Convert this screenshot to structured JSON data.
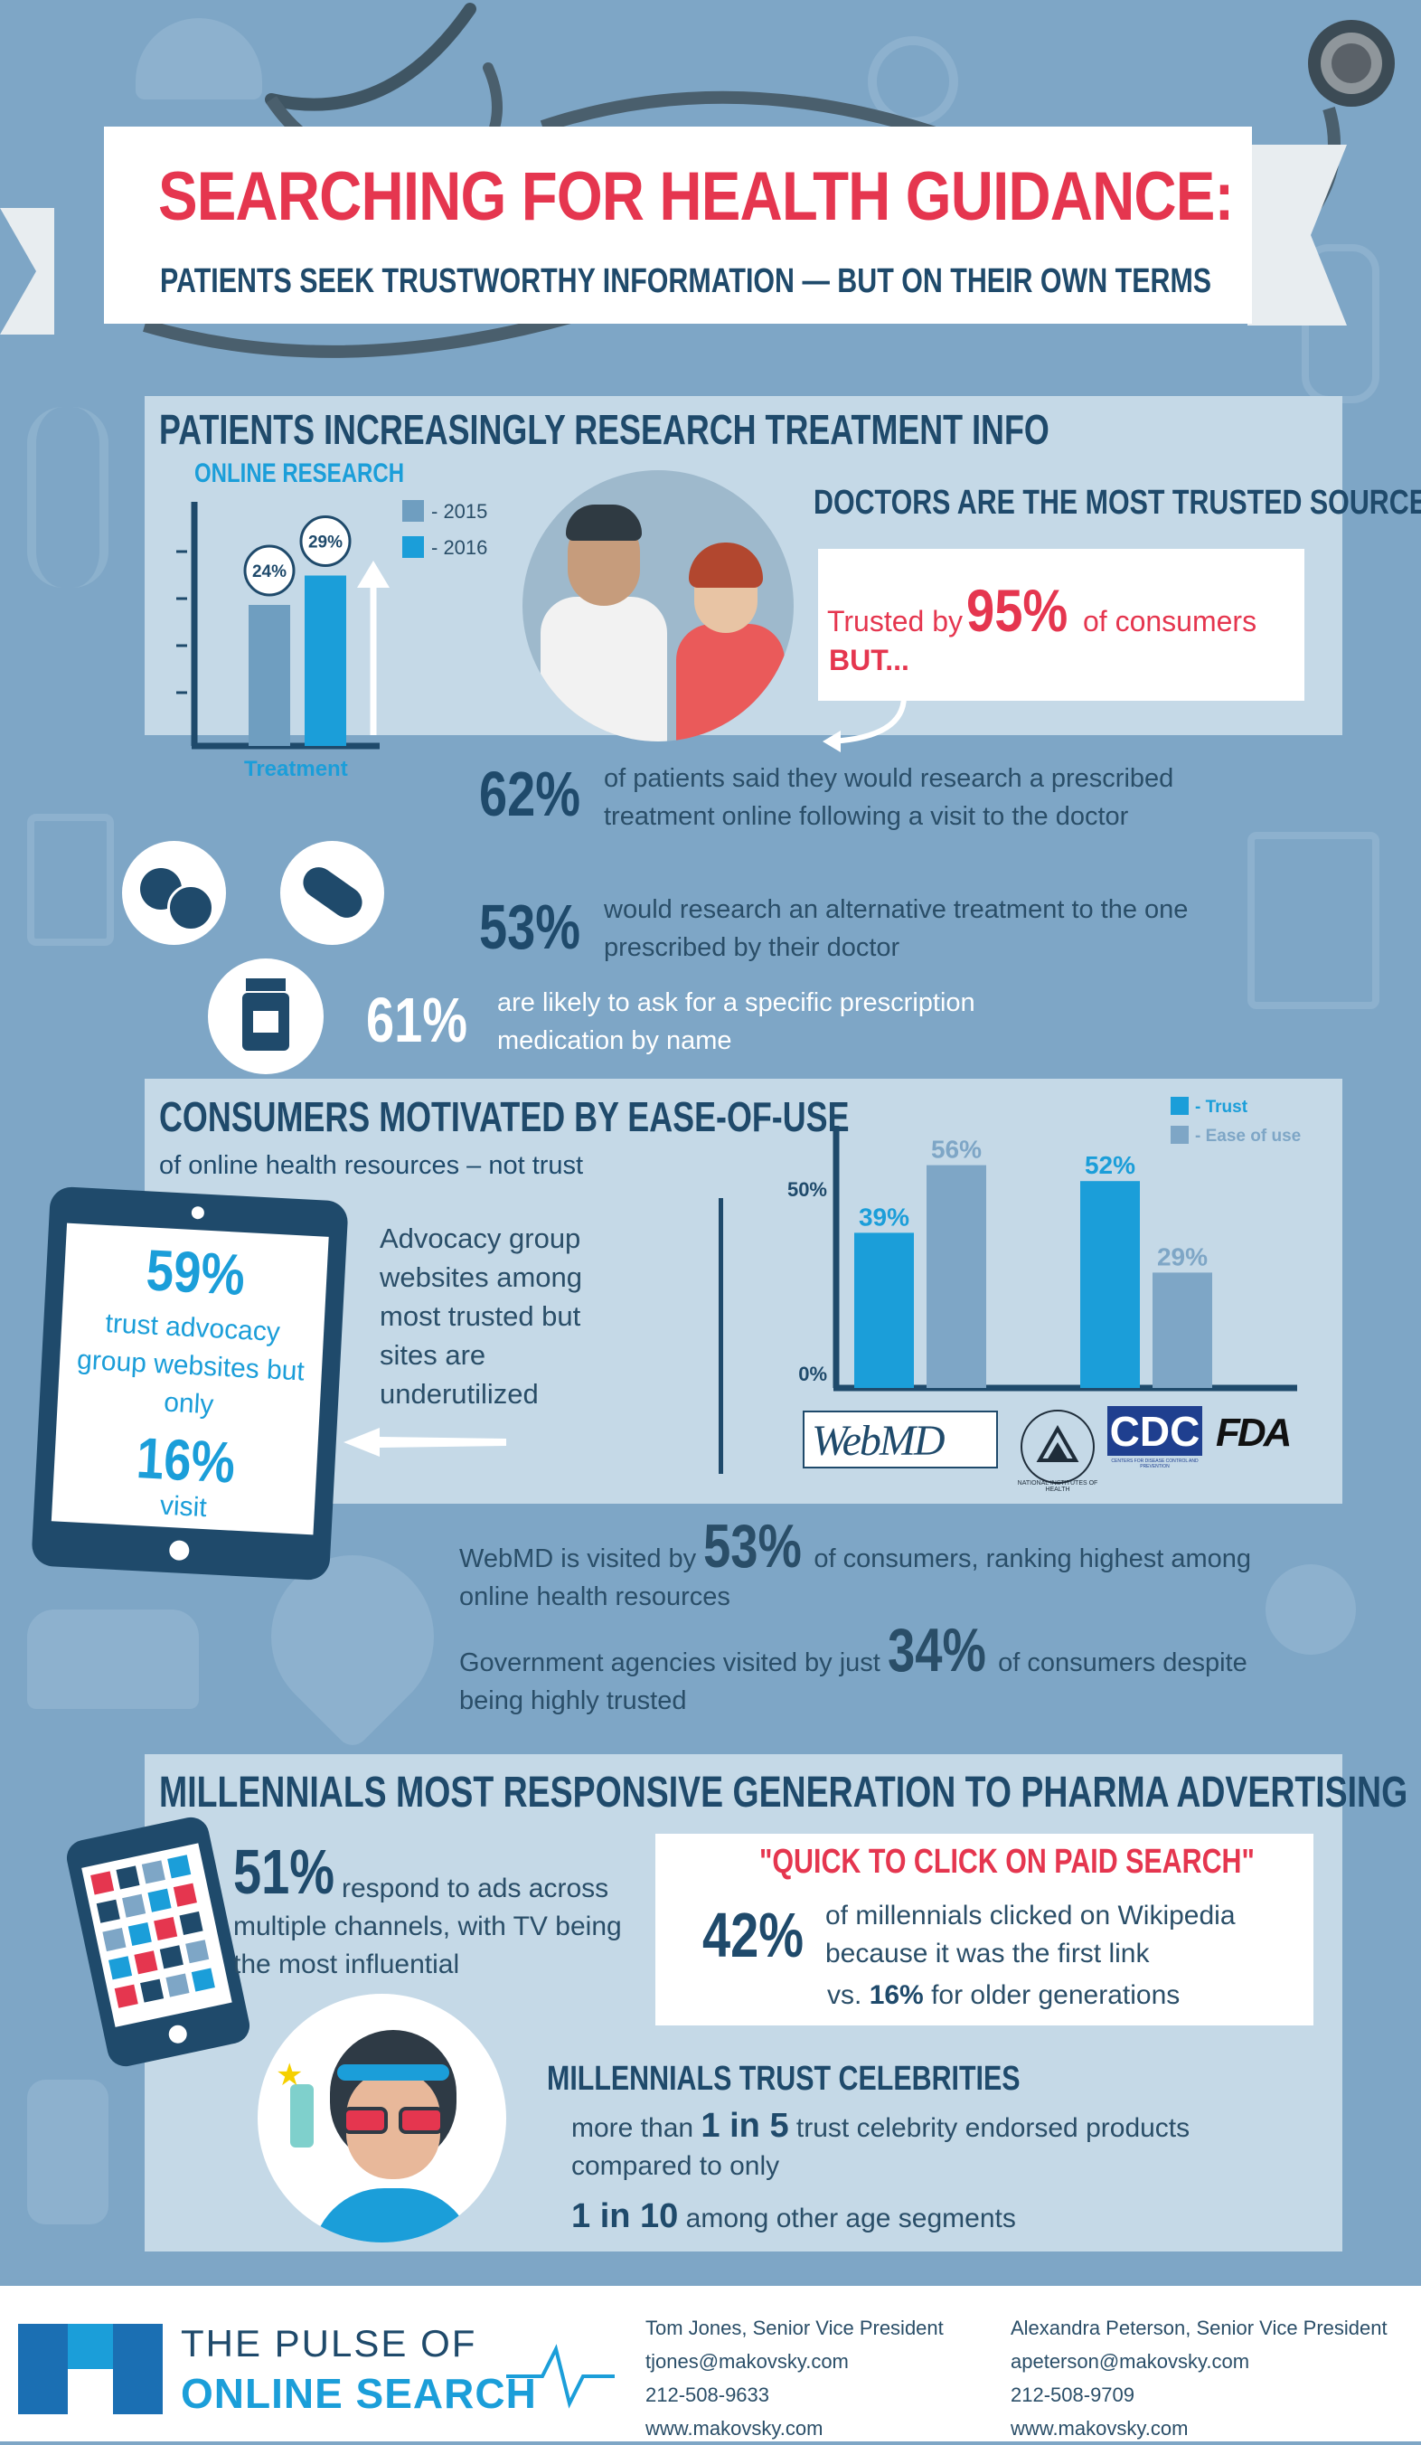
{
  "header": {
    "title": "SEARCHING FOR HEALTH GUIDANCE:",
    "subtitle": "PATIENTS SEEK TRUSTWORTHY INFORMATION — BUT ON THEIR OWN TERMS"
  },
  "section1": {
    "heading": "PATIENTS INCREASINGLY RESEARCH TREATMENT INFO",
    "chart_title": "ONLINE RESEARCH",
    "doctors_heading": "DOCTORS ARE THE MOST TRUSTED SOURCE",
    "trusted_prefix": "Trusted by",
    "trusted_value": "95%",
    "trusted_suffix": "of consumers",
    "but": "BUT...",
    "stat1_value": "62%",
    "stat1_text": "of patients said they would research a prescribed treatment online following a visit to the doctor",
    "stat2_value": "53%",
    "stat2_text": "would research an alternative treatment to the one prescribed by their doctor",
    "stat3_value": "61%",
    "stat3_text": "are likely to ask for a specific prescription medication by name"
  },
  "section2": {
    "heading": "CONSUMERS MOTIVATED BY EASE-OF-USE",
    "subheading": "of online health resources – not trust",
    "tablet_value1": "59%",
    "tablet_text1": "trust advocacy group websites but only",
    "tablet_value2": "16%",
    "tablet_text2": "visit",
    "advocacy_text": "Advocacy group websites among most trusted but sites are underutilized",
    "logo_webmd": "WebMD",
    "logo_nih": "NATIONAL INSTITUTES OF HEALTH",
    "logo_cdc": "CDC",
    "logo_cdc_sub": "CENTERS FOR DISEASE CONTROL AND PREVENTION",
    "logo_fda": "FDA",
    "webmd_prefix": "WebMD is visited by",
    "webmd_value": "53%",
    "webmd_suffix": "of consumers, ranking highest among online health resources",
    "gov_prefix": "Government agencies visited by just",
    "gov_value": "34%",
    "gov_suffix": "of consumers despite being highly trusted"
  },
  "section3": {
    "heading": "MILLENNIALS MOST RESPONSIVE GENERATION TO PHARMA ADVERTISING",
    "ads_value": "51%",
    "ads_text": "respond to ads across multiple channels, with TV being the most influential",
    "quick_heading": "\"QUICK TO CLICK ON PAID SEARCH\"",
    "wiki_value": "42%",
    "wiki_text": "of millennials clicked on Wikipedia because it was the first link",
    "vs_prefix": "vs.",
    "vs_value": "16%",
    "vs_suffix": "for older generations",
    "celeb_heading": "MILLENNIALS TRUST CELEBRITIES",
    "celeb_prefix": "more than",
    "celeb_value": "1 in 5",
    "celeb_suffix": "trust celebrity endorsed products",
    "celeb_line2": "compared to only",
    "celeb_value2": "1 in 10",
    "celeb_suffix2": "among other age segments"
  },
  "footer": {
    "brand_line1": "THE PULSE OF",
    "brand_line2": "ONLINE SEARCH",
    "contact1": {
      "name": "Tom Jones, Senior Vice President",
      "email": "tjones@makovsky.com",
      "phone": "212-508-9633",
      "web": "www.makovsky.com"
    },
    "contact2": {
      "name": "Alexandra Peterson, Senior Vice President",
      "email": "apeterson@makovsky.com",
      "phone": "212-508-9709",
      "web": "www.makovsky.com"
    }
  },
  "colors": {
    "pink": "#e5364f",
    "navy": "#1f4a6b",
    "blue": "#1b9ed9",
    "grey_blue": "#7ea6c6",
    "panel": "#c5d9e7"
  },
  "chart_data": [
    {
      "type": "bar",
      "title": "ONLINE RESEARCH",
      "categories": [
        "Treatment"
      ],
      "series": [
        {
          "name": "- 2015",
          "values": [
            24
          ],
          "color": "#6f9ec0"
        },
        {
          "name": "- 2016",
          "values": [
            29
          ],
          "color": "#1b9ed9"
        }
      ],
      "data_labels": [
        "24%",
        "29%"
      ],
      "xlabel": "Treatment",
      "ylim": [
        0,
        40
      ],
      "legend": "top-right"
    },
    {
      "type": "bar",
      "categories": [
        "WebMD",
        "CDC"
      ],
      "series": [
        {
          "name": "- Trust",
          "values": [
            39,
            52
          ],
          "color": "#1b9ed9"
        },
        {
          "name": "- Ease of use",
          "values": [
            56,
            29
          ],
          "color": "#7ea6c6"
        }
      ],
      "data_labels": [
        [
          "39%",
          "52%"
        ],
        [
          "56%",
          "29%"
        ]
      ],
      "yticks": [
        "0%",
        "50%"
      ],
      "ylim": [
        0,
        60
      ],
      "legend": "top-right"
    }
  ]
}
